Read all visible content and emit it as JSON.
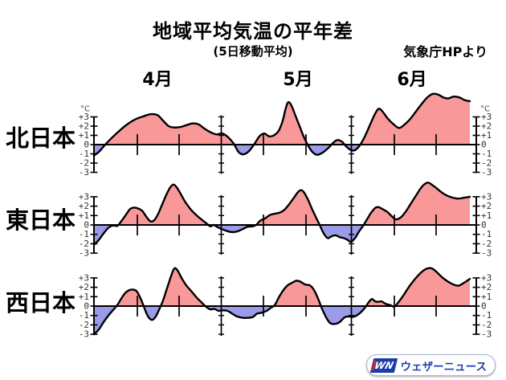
{
  "title": "地域平均気温の平年差",
  "subtitle": "(5日移動平均)",
  "credit": "気象庁HPより",
  "logo": {
    "mark": "WN",
    "text": "ウェザーニュース"
  },
  "colors": {
    "positive_fill": "#f89898",
    "negative_fill": "#9a9ce9",
    "line": "#000000",
    "logo_blue": "#1d3ca8",
    "logo_red": "#d42b1e"
  },
  "chart_data": {
    "type": "area",
    "title": "地域平均気温の平年差",
    "subtitle": "(5日移動平均)",
    "unit": "°C",
    "ylim": [
      -3,
      3
    ],
    "yticks": [
      "+3",
      "+2",
      "+1",
      "0",
      "-1",
      "-2",
      "-3"
    ],
    "months": [
      "4月",
      "5月",
      "6月"
    ],
    "color_positive": "#f89898",
    "color_negative": "#9a9ce9",
    "series": [
      {
        "name": "北日本",
        "points": [
          [
            117,
            -1.2
          ],
          [
            124,
            -0.7
          ],
          [
            131,
            0.0
          ],
          [
            140,
            0.8
          ],
          [
            150,
            1.6
          ],
          [
            160,
            2.3
          ],
          [
            170,
            2.8
          ],
          [
            180,
            3.1
          ],
          [
            188,
            3.3
          ],
          [
            196,
            3.2
          ],
          [
            203,
            2.6
          ],
          [
            210,
            2.0
          ],
          [
            217,
            1.85
          ],
          [
            224,
            1.9
          ],
          [
            232,
            2.1
          ],
          [
            240,
            2.3
          ],
          [
            247,
            2.2
          ],
          [
            255,
            1.7
          ],
          [
            263,
            1.3
          ],
          [
            270,
            1.1
          ],
          [
            277,
            1.2
          ],
          [
            284,
            0.8
          ],
          [
            291,
            0.1
          ],
          [
            297,
            -0.8
          ],
          [
            303,
            -1.05
          ],
          [
            310,
            -0.7
          ],
          [
            317,
            0.1
          ],
          [
            323,
            0.9
          ],
          [
            329,
            1.2
          ],
          [
            335,
            0.9
          ],
          [
            341,
            1.0
          ],
          [
            347,
            1.5
          ],
          [
            352,
            2.6
          ],
          [
            356,
            4.0
          ],
          [
            359,
            4.6
          ],
          [
            363,
            4.2
          ],
          [
            368,
            3.1
          ],
          [
            373,
            2.0
          ],
          [
            378,
            0.9
          ],
          [
            383,
            0.0
          ],
          [
            389,
            -0.8
          ],
          [
            395,
            -1.1
          ],
          [
            402,
            -0.85
          ],
          [
            409,
            -0.35
          ],
          [
            415,
            0.2
          ],
          [
            420,
            0.5
          ],
          [
            426,
            0.3
          ],
          [
            431,
            -0.2
          ],
          [
            437,
            -0.6
          ],
          [
            442,
            -0.6
          ],
          [
            447,
            -0.2
          ],
          [
            452,
            0.5
          ],
          [
            457,
            1.4
          ],
          [
            463,
            2.6
          ],
          [
            468,
            3.5
          ],
          [
            472,
            3.9
          ],
          [
            477,
            3.5
          ],
          [
            483,
            2.8
          ],
          [
            490,
            2.2
          ],
          [
            497,
            1.8
          ],
          [
            504,
            2.2
          ],
          [
            511,
            2.8
          ],
          [
            518,
            3.6
          ],
          [
            525,
            4.4
          ],
          [
            532,
            5.1
          ],
          [
            539,
            5.5
          ],
          [
            546,
            5.4
          ],
          [
            552,
            5.1
          ],
          [
            558,
            5.0
          ],
          [
            565,
            5.2
          ],
          [
            572,
            5.1
          ],
          [
            579,
            4.8
          ],
          [
            585,
            4.7
          ]
        ]
      },
      {
        "name": "東日本",
        "points": [
          [
            117,
            -2.1
          ],
          [
            123,
            -1.6
          ],
          [
            129,
            -0.9
          ],
          [
            135,
            -0.3
          ],
          [
            141,
            -0.05
          ],
          [
            146,
            -0.1
          ],
          [
            151,
            0.4
          ],
          [
            157,
            1.1
          ],
          [
            162,
            1.7
          ],
          [
            167,
            1.85
          ],
          [
            172,
            1.75
          ],
          [
            177,
            1.5
          ],
          [
            182,
            0.9
          ],
          [
            187,
            0.4
          ],
          [
            192,
            0.5
          ],
          [
            197,
            1.2
          ],
          [
            202,
            2.2
          ],
          [
            207,
            3.2
          ],
          [
            212,
            4.0
          ],
          [
            216,
            4.3
          ],
          [
            220,
            4.0
          ],
          [
            225,
            3.3
          ],
          [
            231,
            2.4
          ],
          [
            238,
            1.6
          ],
          [
            245,
            1.0
          ],
          [
            252,
            0.5
          ],
          [
            258,
            0.1
          ],
          [
            262,
            -0.15
          ],
          [
            266,
            0.0
          ],
          [
            270,
            -0.2
          ],
          [
            275,
            -0.4
          ],
          [
            281,
            -0.6
          ],
          [
            288,
            -0.75
          ],
          [
            295,
            -0.7
          ],
          [
            302,
            -0.45
          ],
          [
            308,
            -0.2
          ],
          [
            314,
            -0.15
          ],
          [
            319,
            0.0
          ],
          [
            324,
            0.45
          ],
          [
            330,
            0.7
          ],
          [
            336,
            1.05
          ],
          [
            342,
            1.2
          ],
          [
            348,
            1.3
          ],
          [
            354,
            1.6
          ],
          [
            360,
            2.2
          ],
          [
            366,
            2.9
          ],
          [
            371,
            3.5
          ],
          [
            375,
            3.7
          ],
          [
            379,
            3.4
          ],
          [
            384,
            2.6
          ],
          [
            389,
            1.6
          ],
          [
            394,
            0.7
          ],
          [
            398,
            0.0
          ],
          [
            403,
            -0.9
          ],
          [
            408,
            -1.4
          ],
          [
            413,
            -1.2
          ],
          [
            418,
            -1.1
          ],
          [
            423,
            -1.3
          ],
          [
            428,
            -1.4
          ],
          [
            433,
            -1.6
          ],
          [
            437,
            -1.8
          ],
          [
            442,
            -1.4
          ],
          [
            447,
            -0.7
          ],
          [
            452,
            -0.1
          ],
          [
            457,
            0.6
          ],
          [
            462,
            1.3
          ],
          [
            467,
            1.8
          ],
          [
            471,
            1.9
          ],
          [
            476,
            1.7
          ],
          [
            482,
            1.4
          ],
          [
            488,
            0.9
          ],
          [
            493,
            0.6
          ],
          [
            499,
            0.8
          ],
          [
            505,
            1.4
          ],
          [
            511,
            2.2
          ],
          [
            517,
            3.0
          ],
          [
            523,
            3.8
          ],
          [
            528,
            4.3
          ],
          [
            533,
            4.5
          ],
          [
            539,
            4.2
          ],
          [
            545,
            3.8
          ],
          [
            551,
            3.4
          ],
          [
            557,
            3.1
          ],
          [
            564,
            2.9
          ],
          [
            571,
            2.8
          ],
          [
            578,
            2.9
          ],
          [
            585,
            3.0
          ]
        ]
      },
      {
        "name": "西日本",
        "points": [
          [
            117,
            -3.0
          ],
          [
            123,
            -2.5
          ],
          [
            129,
            -1.7
          ],
          [
            135,
            -1.0
          ],
          [
            141,
            -0.4
          ],
          [
            146,
            0.1
          ],
          [
            151,
            0.8
          ],
          [
            156,
            1.4
          ],
          [
            161,
            1.7
          ],
          [
            166,
            1.75
          ],
          [
            170,
            1.6
          ],
          [
            174,
            1.0
          ],
          [
            178,
            0.2
          ],
          [
            182,
            -0.7
          ],
          [
            186,
            -1.3
          ],
          [
            190,
            -1.45
          ],
          [
            194,
            -1.1
          ],
          [
            198,
            -0.4
          ],
          [
            203,
            0.6
          ],
          [
            208,
            1.9
          ],
          [
            213,
            3.2
          ],
          [
            217,
            4.0
          ],
          [
            221,
            3.8
          ],
          [
            226,
            3.0
          ],
          [
            232,
            2.2
          ],
          [
            239,
            1.5
          ],
          [
            246,
            0.8
          ],
          [
            252,
            0.3
          ],
          [
            257,
            -0.1
          ],
          [
            262,
            -0.35
          ],
          [
            267,
            -0.3
          ],
          [
            272,
            -0.5
          ],
          [
            277,
            -0.45
          ],
          [
            283,
            -0.5
          ],
          [
            289,
            -0.8
          ],
          [
            295,
            -1.1
          ],
          [
            302,
            -1.25
          ],
          [
            309,
            -1.25
          ],
          [
            315,
            -1.15
          ],
          [
            320,
            -0.8
          ],
          [
            326,
            -0.7
          ],
          [
            332,
            -0.5
          ],
          [
            337,
            -0.2
          ],
          [
            342,
            0.1
          ],
          [
            347,
            0.9
          ],
          [
            352,
            1.6
          ],
          [
            358,
            2.2
          ],
          [
            364,
            2.5
          ],
          [
            369,
            2.7
          ],
          [
            374,
            2.6
          ],
          [
            380,
            2.3
          ],
          [
            386,
            2.2
          ],
          [
            391,
            1.7
          ],
          [
            396,
            0.8
          ],
          [
            401,
            -0.3
          ],
          [
            406,
            -1.2
          ],
          [
            411,
            -1.8
          ],
          [
            417,
            -1.9
          ],
          [
            423,
            -1.7
          ],
          [
            429,
            -1.2
          ],
          [
            434,
            -1.1
          ],
          [
            439,
            -1.15
          ],
          [
            444,
            -1.0
          ],
          [
            450,
            -0.6
          ],
          [
            455,
            -0.1
          ],
          [
            459,
            0.4
          ],
          [
            463,
            0.75
          ],
          [
            467,
            0.5
          ],
          [
            471,
            0.45
          ],
          [
            475,
            0.5
          ],
          [
            480,
            0.25
          ],
          [
            486,
            0.1
          ],
          [
            491,
            -0.05
          ],
          [
            496,
            0.4
          ],
          [
            502,
            1.1
          ],
          [
            508,
            1.9
          ],
          [
            514,
            2.6
          ],
          [
            520,
            3.2
          ],
          [
            526,
            3.7
          ],
          [
            532,
            4.0
          ],
          [
            538,
            4.0
          ],
          [
            544,
            3.6
          ],
          [
            550,
            3.1
          ],
          [
            556,
            2.7
          ],
          [
            562,
            2.4
          ],
          [
            568,
            2.2
          ],
          [
            572,
            2.2
          ],
          [
            578,
            2.5
          ],
          [
            585,
            2.9
          ]
        ]
      }
    ]
  }
}
